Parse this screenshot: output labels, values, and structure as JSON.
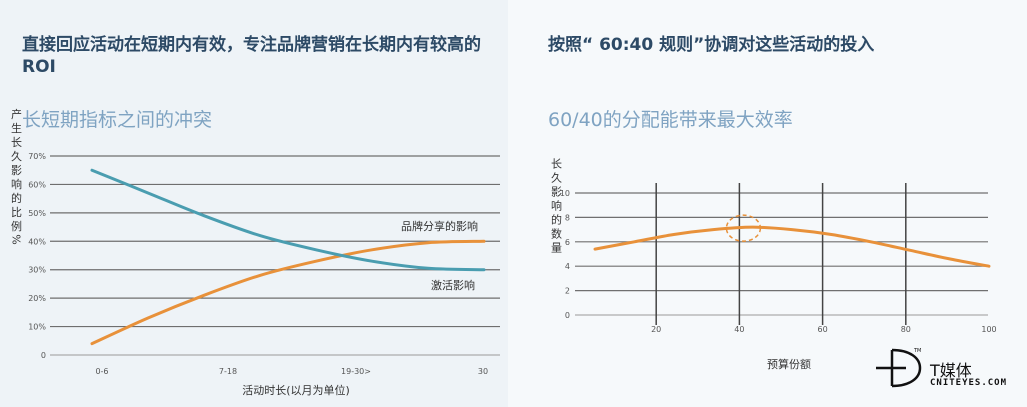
{
  "left": {
    "headline": "直接回应活动在短期内有效，专注品牌营销在长期内有较高的 ROI",
    "subhead": "长短期指标之间的冲突"
  },
  "right": {
    "headline": "按照“ 60:40 规则”协调对这些活动的投入",
    "subhead": "60/40的分配能带来最大效率"
  },
  "chart_data": [
    {
      "type": "line",
      "xlabel": "活动时长(以月为单位)",
      "ylabel": "产生长久影响的比例%",
      "x_ticks": [
        "0-6",
        "7-18",
        "19-30>",
        "30"
      ],
      "y_ticks": [
        "0",
        "10%",
        "20%",
        "30%",
        "40%",
        "50%",
        "60%",
        "70%"
      ],
      "ylim": [
        0,
        70
      ],
      "series": [
        {
          "name": "品牌分享的影响",
          "color": "#e8913a",
          "values": [
            [
              0,
              4
            ],
            [
              0.5,
              13
            ],
            [
              1,
              21
            ],
            [
              1.5,
              28
            ],
            [
              2,
              33
            ],
            [
              2.5,
              37
            ],
            [
              3,
              39.5
            ],
            [
              3.5,
              40
            ]
          ]
        },
        {
          "name": "激活影响",
          "color": "#4a9db0",
          "values": [
            [
              0,
              65
            ],
            [
              0.5,
              57
            ],
            [
              1,
              49
            ],
            [
              1.5,
              42
            ],
            [
              2,
              37
            ],
            [
              2.5,
              33
            ],
            [
              3,
              30.5
            ],
            [
              3.5,
              30
            ]
          ]
        }
      ]
    },
    {
      "type": "line",
      "xlabel": "预算份额",
      "ylabel": "长久影响的数量",
      "x_ticks": [
        "20",
        "40",
        "60",
        "80",
        "100"
      ],
      "y_ticks": [
        "0",
        "2",
        "4",
        "6",
        "8",
        "10"
      ],
      "xlim": [
        0,
        100
      ],
      "ylim": [
        0,
        10
      ],
      "series": [
        {
          "name": "",
          "color": "#e8913a",
          "values": [
            [
              0,
              5.4
            ],
            [
              10,
              6.0
            ],
            [
              20,
              6.6
            ],
            [
              30,
              7.0
            ],
            [
              40,
              7.2
            ],
            [
              50,
              7.0
            ],
            [
              60,
              6.6
            ],
            [
              70,
              6.0
            ],
            [
              80,
              5.3
            ],
            [
              90,
              4.6
            ],
            [
              100,
              4.0
            ]
          ]
        }
      ],
      "highlight": {
        "x": 40,
        "y": 7.2,
        "color": "#e8913a"
      }
    }
  ],
  "brand": {
    "name": "T媒体",
    "domain": "CNITEYES.COM"
  }
}
